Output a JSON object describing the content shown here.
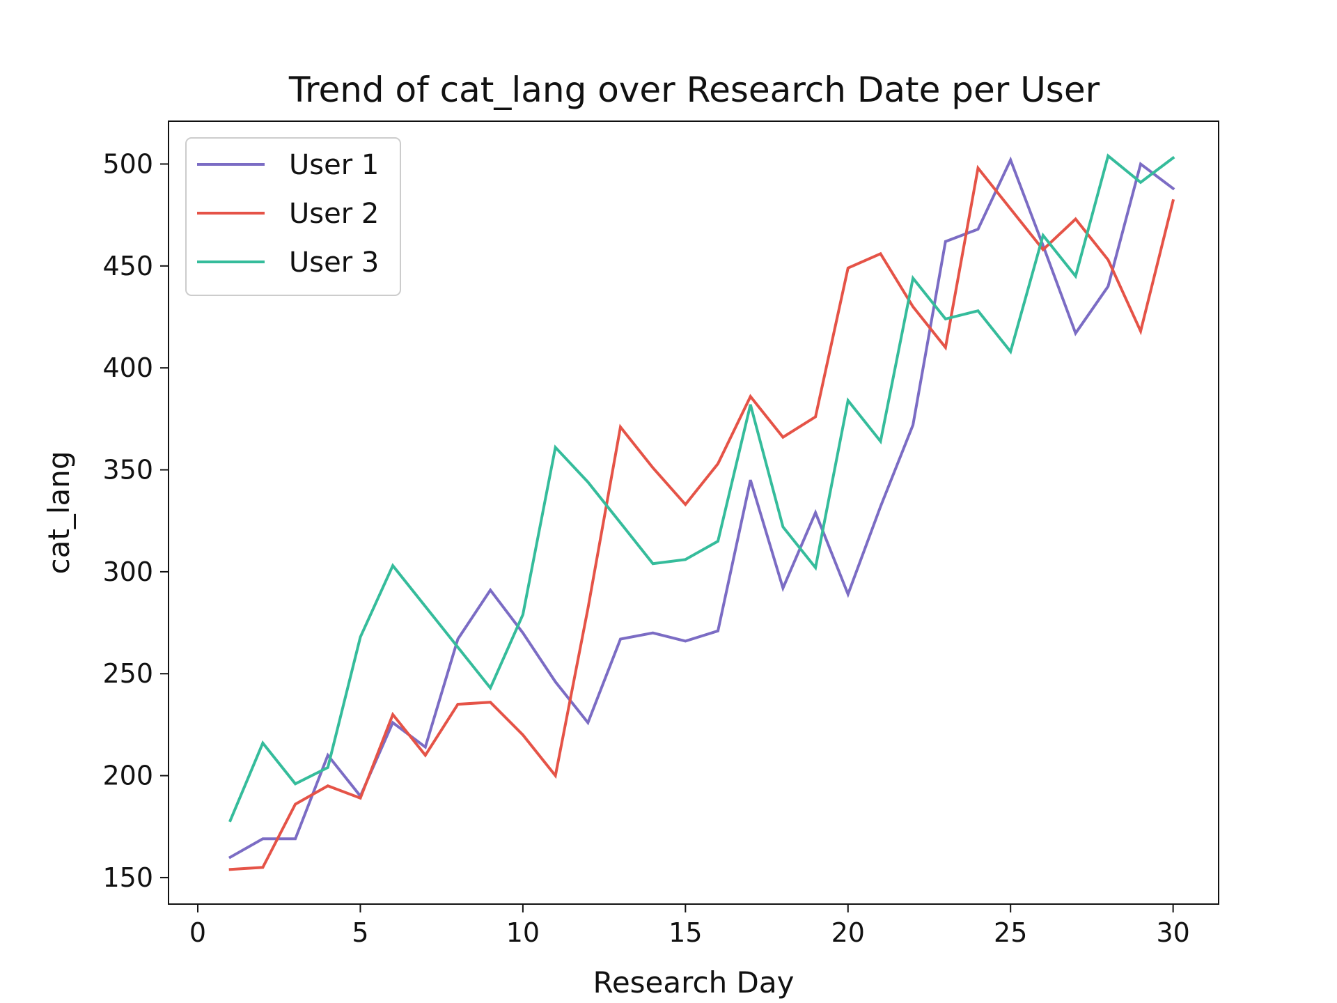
{
  "chart_data": {
    "type": "line",
    "title": "Trend of cat_lang over Research Date per User",
    "xlabel": "Research Day",
    "ylabel": "cat_lang",
    "xlim": [
      -0.9,
      31.4
    ],
    "ylim": [
      137,
      521
    ],
    "xticks": [
      0,
      5,
      10,
      15,
      20,
      25,
      30
    ],
    "yticks": [
      150,
      200,
      250,
      300,
      350,
      400,
      450,
      500
    ],
    "grid": false,
    "legend_position": "upper-left",
    "x": [
      1,
      2,
      3,
      4,
      5,
      6,
      7,
      8,
      9,
      10,
      11,
      12,
      13,
      14,
      15,
      16,
      17,
      18,
      19,
      20,
      21,
      22,
      23,
      24,
      25,
      26,
      27,
      28,
      29,
      30
    ],
    "series": [
      {
        "name": "User 1",
        "color": "#7b6cc4",
        "values": [
          160,
          169,
          169,
          210,
          190,
          226,
          214,
          267,
          291,
          270,
          246,
          226,
          267,
          270,
          266,
          271,
          345,
          292,
          329,
          289,
          332,
          372,
          462,
          468,
          502,
          460,
          417,
          440,
          500,
          488
        ]
      },
      {
        "name": "User 2",
        "color": "#e55347",
        "values": [
          154,
          155,
          186,
          195,
          189,
          230,
          210,
          235,
          236,
          220,
          200,
          282,
          371,
          351,
          333,
          353,
          386,
          366,
          376,
          449,
          456,
          430,
          410,
          498,
          478,
          458,
          473,
          453,
          418,
          482
        ]
      },
      {
        "name": "User 3",
        "color": "#35bc9b",
        "values": [
          178,
          216,
          196,
          204,
          268,
          303,
          283,
          263,
          243,
          279,
          361,
          344,
          324,
          304,
          306,
          315,
          382,
          322,
          302,
          384,
          364,
          444,
          424,
          428,
          408,
          465,
          445,
          504,
          491,
          503
        ]
      }
    ]
  }
}
